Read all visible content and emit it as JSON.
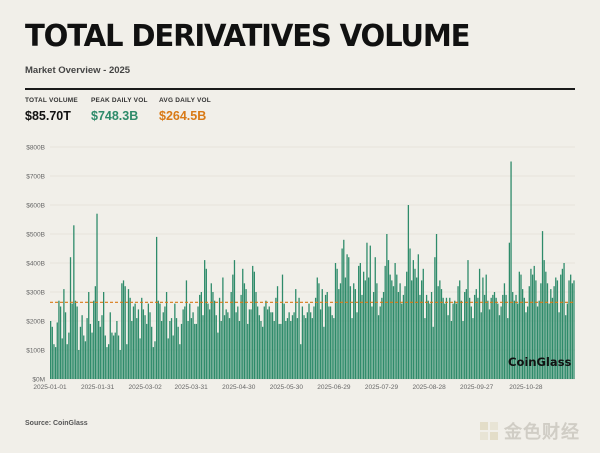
{
  "header": {
    "title": "TOTAL DERIVATIVES VOLUME",
    "subtitle": "Market Overview - 2025"
  },
  "stats": [
    {
      "label": "TOTAL VOLUME",
      "value": "$85.70T",
      "color": "#111111"
    },
    {
      "label": "PEAK DAILY VOL",
      "value": "$748.3B",
      "color": "#2e8b6a"
    },
    {
      "label": "AVG DAILY VOL",
      "value": "$264.5B",
      "color": "#d97a16"
    }
  ],
  "brand": "CoinGlass",
  "source": "Source: CoinGlass",
  "watermark": "金色财经",
  "chart_data": {
    "type": "bar",
    "x_start": "2025-01-01",
    "x_end": "2025-11-28",
    "x_tick_labels": [
      "2025-01-01",
      "2025-01-31",
      "2025-03-02",
      "2025-03-31",
      "2025-04-30",
      "2025-05-30",
      "2025-06-29",
      "2025-07-29",
      "2025-08-28",
      "2025-09-27",
      "2025-10-28"
    ],
    "y_tick_labels": [
      "$0M",
      "$100B",
      "$200B",
      "$300B",
      "$400B",
      "$500B",
      "$600B",
      "$700B",
      "$800B"
    ],
    "ylim": [
      0,
      800
    ],
    "y_unit": "B",
    "average_line": 264.5,
    "bar_color": "#2e8b6a",
    "avg_line_color": "#d97a16",
    "grid": true,
    "values": [
      200,
      180,
      120,
      110,
      195,
      270,
      250,
      140,
      310,
      230,
      120,
      160,
      420,
      260,
      530,
      270,
      250,
      100,
      180,
      220,
      150,
      130,
      210,
      300,
      190,
      160,
      270,
      320,
      570,
      200,
      180,
      220,
      300,
      150,
      110,
      120,
      230,
      160,
      150,
      160,
      200,
      150,
      100,
      330,
      340,
      320,
      120,
      310,
      280,
      200,
      250,
      260,
      210,
      240,
      140,
      280,
      240,
      220,
      190,
      260,
      230,
      180,
      110,
      130,
      490,
      270,
      260,
      200,
      230,
      250,
      300,
      140,
      200,
      210,
      150,
      260,
      210,
      180,
      120,
      190,
      240,
      250,
      340,
      200,
      260,
      210,
      230,
      190,
      190,
      250,
      290,
      300,
      220,
      410,
      380,
      260,
      240,
      330,
      300,
      270,
      220,
      160,
      280,
      200,
      350,
      220,
      240,
      230,
      210,
      300,
      360,
      410,
      230,
      250,
      200,
      290,
      380,
      330,
      310,
      190,
      240,
      240,
      390,
      370,
      300,
      250,
      220,
      200,
      180,
      250,
      270,
      240,
      250,
      230,
      230,
      200,
      280,
      320,
      190,
      190,
      360,
      260,
      200,
      210,
      230,
      200,
      220,
      230,
      310,
      210,
      280,
      120,
      250,
      220,
      210,
      230,
      260,
      230,
      210,
      250,
      280,
      350,
      330,
      240,
      310,
      180,
      290,
      300,
      250,
      250,
      220,
      210,
      400,
      380,
      310,
      330,
      450,
      480,
      350,
      430,
      420,
      320,
      210,
      330,
      310,
      230,
      390,
      400,
      290,
      370,
      340,
      470,
      350,
      460,
      250,
      300,
      420,
      330,
      220,
      250,
      280,
      300,
      390,
      500,
      410,
      360,
      340,
      320,
      400,
      360,
      300,
      330,
      260,
      290,
      320,
      370,
      600,
      450,
      340,
      410,
      380,
      350,
      430,
      290,
      340,
      380,
      210,
      290,
      270,
      260,
      300,
      180,
      420,
      500,
      320,
      340,
      310,
      280,
      260,
      280,
      220,
      280,
      200,
      260,
      270,
      260,
      320,
      340,
      270,
      200,
      300,
      310,
      410,
      280,
      250,
      210,
      290,
      310,
      280,
      380,
      230,
      350,
      290,
      360,
      270,
      240,
      280,
      290,
      300,
      280,
      260,
      220,
      250,
      290,
      330,
      290,
      210,
      470,
      750,
      300,
      270,
      290,
      260,
      370,
      360,
      310,
      280,
      230,
      250,
      320,
      380,
      360,
      390,
      340,
      250,
      270,
      330,
      510,
      410,
      370,
      330,
      260,
      310,
      280,
      320,
      350,
      340,
      230,
      360,
      380,
      400,
      220,
      260,
      340,
      360,
      330,
      340
    ]
  }
}
